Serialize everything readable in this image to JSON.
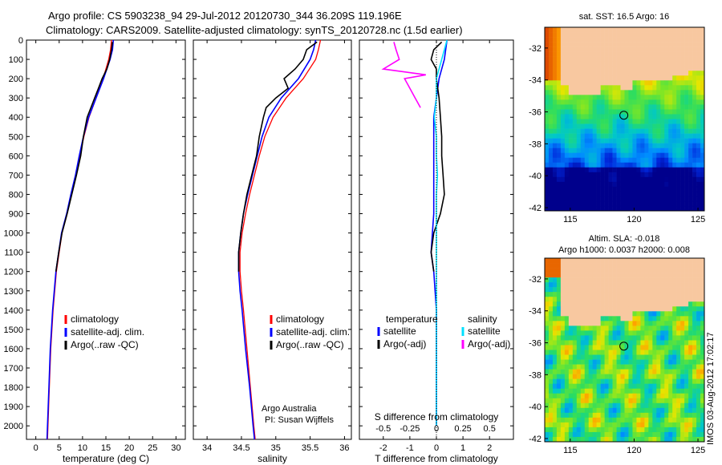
{
  "header": {
    "line1": "Argo profile: CS 5903238_94 29-Jul-2012 20120730_344 36.209S 119.196E",
    "line2": "Climatology: CARS2009. Satellite-adjusted climatology: synTS_20120728.nc (1.5d earlier)"
  },
  "colors": {
    "climatology": "#ff0000",
    "satellite": "#0000ff",
    "argo": "#000000",
    "sal_satellite": "#00e0ff",
    "sal_argo": "#ff00ff",
    "land": "#f8c8a0"
  },
  "chart_data": [
    {
      "type": "line",
      "id": "temperature",
      "xlabel": "temperature (deg C)",
      "xlim": [
        -2,
        32
      ],
      "xticks": [
        0,
        5,
        10,
        15,
        20,
        25,
        30
      ],
      "ylim": [
        2070,
        0
      ],
      "yticks": [
        0,
        100,
        200,
        300,
        400,
        500,
        600,
        700,
        800,
        900,
        1000,
        1100,
        1200,
        1300,
        1400,
        1500,
        1600,
        1700,
        1800,
        1900,
        2000
      ],
      "legend": [
        "climatology",
        "satellite-adj. clim.",
        "Argo(..raw -QC)"
      ],
      "series": [
        {
          "name": "climatology",
          "depth": [
            0,
            50,
            100,
            200,
            300,
            400,
            500,
            600,
            700,
            800,
            900,
            1000,
            1200,
            1400,
            1600,
            1800,
            2000,
            2070
          ],
          "values": [
            16.2,
            16.0,
            15.6,
            14.4,
            12.9,
            11.4,
            10.3,
            9.4,
            8.6,
            7.6,
            6.7,
            5.6,
            4.4,
            3.7,
            3.2,
            2.9,
            2.6,
            2.5
          ]
        },
        {
          "name": "satellite-adj. clim.",
          "depth": [
            0,
            50,
            100,
            200,
            300,
            400,
            500,
            600,
            700,
            800,
            900,
            1000,
            1200,
            1400,
            1600,
            1800,
            2000,
            2070
          ],
          "values": [
            16.6,
            16.4,
            15.9,
            14.5,
            12.9,
            11.3,
            10.2,
            9.3,
            8.5,
            7.5,
            6.6,
            5.5,
            4.3,
            3.6,
            3.1,
            2.8,
            2.5,
            2.4
          ]
        },
        {
          "name": "Argo(..raw -QC)",
          "depth": [
            10,
            50,
            100,
            150,
            200,
            250,
            300,
            400,
            500,
            600,
            700,
            800,
            900,
            1000,
            1100,
            1200
          ],
          "values": [
            16.4,
            16.2,
            15.8,
            15.2,
            14.2,
            13.4,
            12.6,
            11.0,
            10.2,
            9.6,
            8.7,
            7.7,
            6.7,
            5.6,
            4.9,
            4.3
          ]
        }
      ]
    },
    {
      "type": "line",
      "id": "salinity",
      "xlabel": "salinity",
      "xlim": [
        33.8,
        36.1
      ],
      "xticks": [
        34,
        34.5,
        35,
        35.5,
        36
      ],
      "ylim": [
        2070,
        0
      ],
      "legend": [
        "climatology",
        "satellite-adj. clim.",
        "Argo(..raw -QC)"
      ],
      "series": [
        {
          "name": "climatology",
          "depth": [
            0,
            50,
            100,
            200,
            300,
            400,
            500,
            600,
            700,
            800,
            900,
            1000,
            1100,
            1200,
            1300,
            1400,
            1600,
            1800,
            2000,
            2070
          ],
          "values": [
            35.65,
            35.62,
            35.58,
            35.4,
            35.15,
            34.96,
            34.84,
            34.76,
            34.69,
            34.62,
            34.56,
            34.51,
            34.48,
            34.48,
            34.5,
            34.53,
            34.58,
            34.63,
            34.68,
            34.7
          ]
        },
        {
          "name": "satellite-adj. clim.",
          "depth": [
            0,
            50,
            100,
            200,
            300,
            400,
            500,
            600,
            700,
            800,
            900,
            1000,
            1100,
            1200,
            1300,
            1400,
            1600,
            1800,
            2000,
            2070
          ],
          "values": [
            35.58,
            35.55,
            35.5,
            35.33,
            35.08,
            34.9,
            34.8,
            34.73,
            34.66,
            34.59,
            34.53,
            34.49,
            34.46,
            34.46,
            34.48,
            34.51,
            34.56,
            34.62,
            34.67,
            34.69
          ]
        },
        {
          "name": "Argo(..raw -QC)",
          "depth": [
            10,
            50,
            100,
            150,
            200,
            250,
            300,
            350,
            400,
            500,
            600,
            700,
            800,
            900,
            1000,
            1100,
            1200
          ],
          "values": [
            35.6,
            35.45,
            35.4,
            35.28,
            35.12,
            35.18,
            35.0,
            34.86,
            34.82,
            34.76,
            34.72,
            34.65,
            34.58,
            34.53,
            34.49,
            34.46,
            34.46
          ]
        }
      ]
    },
    {
      "type": "line",
      "id": "difference",
      "xlabel": "T difference from climatology",
      "xlabel_top": "S difference from climatology",
      "xlim": [
        -2.9,
        2.9
      ],
      "xticks": [
        -2,
        -1,
        0,
        1,
        2
      ],
      "xticks_top": [
        "-0.5",
        "-0.25",
        "0",
        "0.25",
        "0.5"
      ],
      "ylim": [
        2070,
        0
      ],
      "legend": {
        "temperature": {
          "title": "temperature",
          "items": [
            "satellite",
            "Argo(-adj)"
          ]
        },
        "salinity": {
          "title": "salinity",
          "items": [
            "satellite",
            "Argo(-adj)"
          ]
        }
      },
      "series": [
        {
          "name": "temperature satellite",
          "depth": [
            0,
            100,
            200,
            300,
            400,
            500,
            600,
            700,
            800,
            900,
            1000,
            1100,
            1200,
            1400,
            1600,
            1800,
            2000
          ],
          "values": [
            0.4,
            0.3,
            0.1,
            0.0,
            -0.1,
            -0.1,
            -0.1,
            -0.1,
            -0.1,
            -0.1,
            -0.15,
            -0.2,
            -0.1,
            0.0,
            0.0,
            0.0,
            0.0
          ]
        },
        {
          "name": "temperature Argo(-adj)",
          "depth": [
            10,
            50,
            100,
            150,
            200,
            300,
            400,
            500,
            600,
            700,
            800,
            900,
            1000,
            1100,
            1200
          ],
          "values": [
            0.2,
            -0.1,
            -0.2,
            0.0,
            0.0,
            0.1,
            0.15,
            0.2,
            0.2,
            0.25,
            0.3,
            0.15,
            -0.1,
            -0.2,
            -0.1
          ]
        },
        {
          "name": "salinity satellite",
          "depth": [
            0,
            100,
            200,
            300,
            400,
            500,
            600,
            700,
            800,
            900,
            1000,
            1200,
            1500,
            2000
          ],
          "values": [
            0.1,
            0.05,
            0.0,
            0.0,
            -0.02,
            0.0,
            0.0,
            0.01,
            0.0,
            0.0,
            0.0,
            0.0,
            0.0,
            0.0
          ]
        },
        {
          "name": "salinity Argo(-adj)",
          "depth": [
            10,
            50,
            100,
            150,
            180,
            200,
            250,
            300,
            350
          ],
          "values": [
            -0.4,
            -0.38,
            -0.35,
            -0.5,
            -0.1,
            -0.3,
            -0.25,
            -0.2,
            -0.15
          ]
        }
      ]
    },
    {
      "type": "heatmap",
      "id": "sst_map",
      "title": "sat. SST: 16.5 Argo: 16",
      "xticks": [
        115,
        120,
        125
      ],
      "yticks": [
        -32,
        -34,
        -36,
        -38,
        -40,
        -42
      ],
      "xlim": [
        113,
        125.5
      ],
      "ylim": [
        -42.2,
        -30.7
      ],
      "argo_position": {
        "lon": 119.196,
        "lat": -36.209
      }
    },
    {
      "type": "heatmap",
      "id": "sla_map",
      "title_line1": "Altim. SLA: -0.018",
      "title_line2": "Argo h1000: 0.0037 h2000: 0.008",
      "xticks": [
        115,
        120,
        125
      ],
      "yticks": [
        -32,
        -34,
        -36,
        -38,
        -40,
        -42
      ],
      "xlim": [
        113,
        125.5
      ],
      "ylim": [
        -42.2,
        -30.7
      ],
      "argo_position": {
        "lon": 119.196,
        "lat": -36.209
      }
    }
  ],
  "watermark": "IMOS 03-Aug-2012 17:02:17",
  "credits": {
    "line1": "Argo Australia",
    "line2": "PI: Susan Wijffels"
  }
}
